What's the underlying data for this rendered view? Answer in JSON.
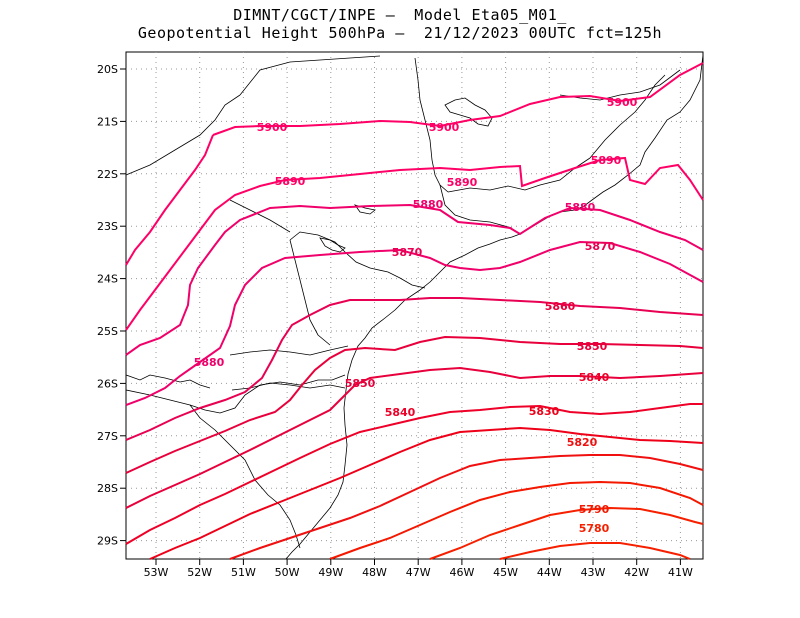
{
  "title": {
    "line1": "DIMNT/CGCT/INPE –  Model Eta05_M01_",
    "line2": "Geopotential Height 500hPa –  21/12/2023 00UTC fct=125h"
  },
  "map": {
    "lon_range": [
      -53.6,
      -40.5
    ],
    "lat_range": [
      -29.4,
      -19.6
    ],
    "lat_ticks": [
      "20S",
      "21S",
      "22S",
      "23S",
      "24S",
      "25S",
      "26S",
      "27S",
      "28S",
      "29S"
    ],
    "lon_ticks": [
      "53W",
      "52W",
      "51W",
      "50W",
      "49W",
      "48W",
      "47W",
      "46W",
      "45W",
      "44W",
      "43W",
      "42W",
      "41W"
    ],
    "grid": "dotted",
    "contour_colors": {
      "5900": "#ff0066",
      "5890": "#ff0066",
      "5880": "#f0006a",
      "5870": "#e80052",
      "5860": "#e8003c",
      "5850": "#e8003c",
      "5840": "#ee0028",
      "5830": "#ee0018",
      "5820": "#f01010",
      "5790": "#f41800",
      "5780": "#f62000"
    }
  },
  "contour_labels": [
    {
      "text": "5900",
      "color": "#ff0066"
    },
    {
      "text": "5900",
      "color": "#ff0066"
    },
    {
      "text": "5900",
      "color": "#ff0066"
    },
    {
      "text": "5890",
      "color": "#ff0066"
    },
    {
      "text": "5890",
      "color": "#ff0066"
    },
    {
      "text": "5890",
      "color": "#ff0066"
    },
    {
      "text": "5880",
      "color": "#f0006a"
    },
    {
      "text": "5880",
      "color": "#f0006a"
    },
    {
      "text": "5880",
      "color": "#f0006a"
    },
    {
      "text": "5870",
      "color": "#e80052"
    },
    {
      "text": "5870",
      "color": "#e80052"
    },
    {
      "text": "5860",
      "color": "#e8003c"
    },
    {
      "text": "5850",
      "color": "#e8003c"
    },
    {
      "text": "5850",
      "color": "#e8003c"
    },
    {
      "text": "5840",
      "color": "#ee0028"
    },
    {
      "text": "5840",
      "color": "#ee0028"
    },
    {
      "text": "5830",
      "color": "#ee0018"
    },
    {
      "text": "5820",
      "color": "#f01010"
    },
    {
      "text": "5790",
      "color": "#f41800"
    },
    {
      "text": "5780",
      "color": "#f62000"
    }
  ]
}
